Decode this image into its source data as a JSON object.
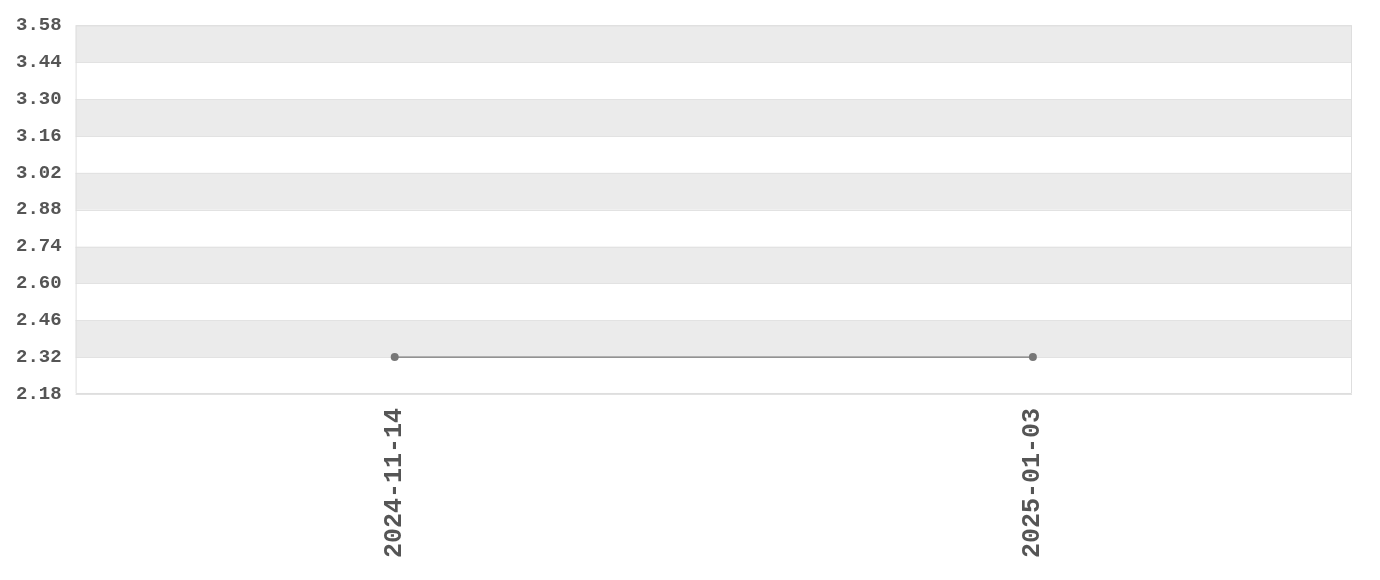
{
  "chart_data": {
    "type": "line",
    "categories": [
      "2024-11-14",
      "2025-01-03"
    ],
    "series": [
      {
        "color": "#777777",
        "values": [
          2.32,
          2.32
        ]
      }
    ],
    "ylim": [
      2.18,
      3.58
    ],
    "yticks": [
      2.18,
      2.32,
      2.46,
      {
        "value": 2.6,
        "label": "2.60"
      },
      2.74,
      2.88,
      3.02,
      3.16,
      {
        "value": 3.3,
        "label": "3.30"
      },
      3.44,
      3.58
    ],
    "grid": "y",
    "legend": false,
    "marker": "circle",
    "line_style": "solid"
  }
}
